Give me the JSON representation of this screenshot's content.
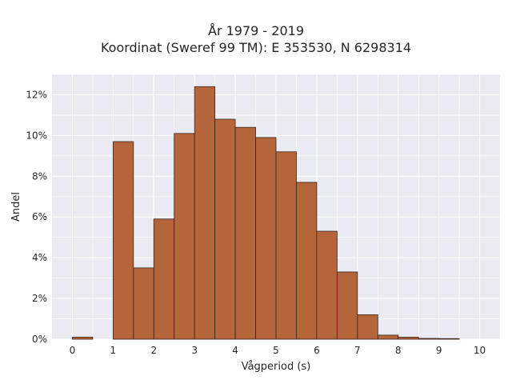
{
  "chart_data": {
    "type": "bar",
    "title": "År 1979 - 2019",
    "subtitle": "Koordinat (Sweref 99 TM): E 353530, N 6298314",
    "xlabel": "Vågperiod (s)",
    "ylabel": "Andel",
    "xlim": [
      -0.5,
      10.5
    ],
    "ylim": [
      0,
      0.13
    ],
    "x_ticks": [
      0,
      1,
      2,
      3,
      4,
      5,
      6,
      7,
      8,
      9,
      10
    ],
    "y_ticks": [
      0,
      0.02,
      0.04,
      0.06,
      0.08,
      0.1,
      0.12
    ],
    "y_tick_labels": [
      "0%",
      "2%",
      "4%",
      "6%",
      "8%",
      "10%",
      "12%"
    ],
    "bin_width": 0.5,
    "bins": [
      {
        "x0": 0.0,
        "value": 0.001
      },
      {
        "x0": 1.0,
        "value": 0.097
      },
      {
        "x0": 1.5,
        "value": 0.035
      },
      {
        "x0": 2.0,
        "value": 0.059
      },
      {
        "x0": 2.5,
        "value": 0.101
      },
      {
        "x0": 3.0,
        "value": 0.124
      },
      {
        "x0": 3.5,
        "value": 0.108
      },
      {
        "x0": 4.0,
        "value": 0.104
      },
      {
        "x0": 4.5,
        "value": 0.099
      },
      {
        "x0": 5.0,
        "value": 0.092
      },
      {
        "x0": 5.5,
        "value": 0.077
      },
      {
        "x0": 6.0,
        "value": 0.053
      },
      {
        "x0": 6.5,
        "value": 0.033
      },
      {
        "x0": 7.0,
        "value": 0.012
      },
      {
        "x0": 7.5,
        "value": 0.002
      },
      {
        "x0": 8.0,
        "value": 0.001
      },
      {
        "x0": 8.5,
        "value": 0.0004
      },
      {
        "x0": 9.0,
        "value": 0.0003
      }
    ],
    "grid": true,
    "colors": {
      "bar_fill": "#b5653a",
      "bar_edge": "#3a2418",
      "plot_background": "#eaeaf2",
      "grid": "#ffffff"
    }
  }
}
